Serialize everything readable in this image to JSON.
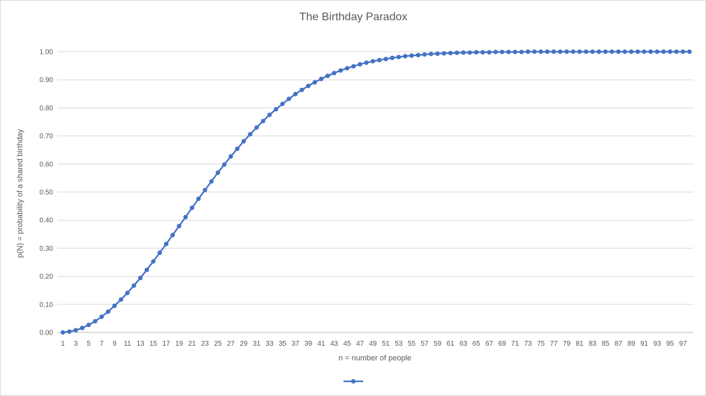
{
  "chart_data": {
    "type": "line",
    "title": "The Birthday Paradox",
    "xlabel": "n = number of people",
    "ylabel": "p(N) = probability of a shared birthday",
    "ylim": [
      0,
      1
    ],
    "y_ticks": [
      "0.00",
      "0.10",
      "0.20",
      "0.30",
      "0.40",
      "0.50",
      "0.60",
      "0.70",
      "0.80",
      "0.90",
      "1.00"
    ],
    "x_start": 1,
    "x_end": 98,
    "x_tick_step": 2,
    "grid": true,
    "legend_position": "bottom",
    "series": [
      {
        "color": "#4472c4",
        "marker": "circle",
        "x": [
          1,
          2,
          3,
          4,
          5,
          6,
          7,
          8,
          9,
          10,
          11,
          12,
          13,
          14,
          15,
          16,
          17,
          18,
          19,
          20,
          21,
          22,
          23,
          24,
          25,
          26,
          27,
          28,
          29,
          30,
          31,
          32,
          33,
          34,
          35,
          36,
          37,
          38,
          39,
          40,
          41,
          42,
          43,
          44,
          45,
          46,
          47,
          48,
          49,
          50,
          51,
          52,
          53,
          54,
          55,
          56,
          57,
          58,
          59,
          60,
          61,
          62,
          63,
          64,
          65,
          66,
          67,
          68,
          69,
          70,
          71,
          72,
          73,
          74,
          75,
          76,
          77,
          78,
          79,
          80,
          81,
          82,
          83,
          84,
          85,
          86,
          87,
          88,
          89,
          90,
          91,
          92,
          93,
          94,
          95,
          96,
          97,
          98
        ],
        "values": [
          0.0,
          0.003,
          0.008,
          0.016,
          0.027,
          0.04,
          0.056,
          0.074,
          0.095,
          0.117,
          0.141,
          0.167,
          0.194,
          0.223,
          0.253,
          0.284,
          0.315,
          0.347,
          0.379,
          0.411,
          0.444,
          0.476,
          0.507,
          0.538,
          0.569,
          0.598,
          0.627,
          0.654,
          0.681,
          0.706,
          0.73,
          0.753,
          0.775,
          0.795,
          0.814,
          0.832,
          0.849,
          0.864,
          0.878,
          0.891,
          0.903,
          0.914,
          0.924,
          0.933,
          0.941,
          0.948,
          0.955,
          0.961,
          0.966,
          0.97,
          0.974,
          0.978,
          0.981,
          0.984,
          0.986,
          0.988,
          0.99,
          0.992,
          0.993,
          0.994,
          0.995,
          0.996,
          0.997,
          0.997,
          0.998,
          0.998,
          0.998,
          0.999,
          0.999,
          0.999,
          0.999,
          0.999,
          1.0,
          1.0,
          1.0,
          1.0,
          1.0,
          1.0,
          1.0,
          1.0,
          1.0,
          1.0,
          1.0,
          1.0,
          1.0,
          1.0,
          1.0,
          1.0,
          1.0,
          1.0,
          1.0,
          1.0,
          1.0,
          1.0,
          1.0,
          1.0,
          1.0,
          1.0
        ]
      }
    ]
  }
}
